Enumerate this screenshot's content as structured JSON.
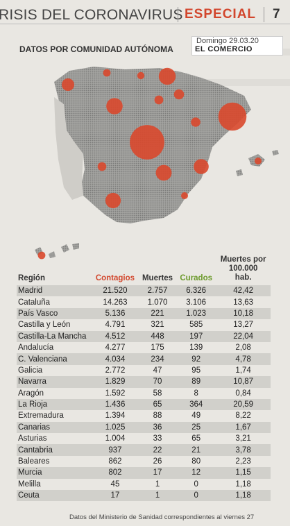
{
  "header": {
    "title": "RISIS DEL CORONAVIRUS",
    "section": "ESPECIAL",
    "page_number": "7"
  },
  "infographic": {
    "subtitle": "DATOS POR COMUNIDAD AUTÓNOMA",
    "date": "Domingo 29.03.20",
    "publication": "EL COMERCIO"
  },
  "map": {
    "land_color": "#8f8f8d",
    "bubble_color": "#d9482c",
    "bubbles": [
      {
        "region": "Galicia",
        "value": 2772
      },
      {
        "region": "Asturias",
        "value": 1004
      },
      {
        "region": "Cantabria",
        "value": 937
      },
      {
        "region": "País Vasco",
        "value": 5136
      },
      {
        "region": "Navarra",
        "value": 1829
      },
      {
        "region": "La Rioja",
        "value": 1436
      },
      {
        "region": "Aragón",
        "value": 1592
      },
      {
        "region": "Cataluña",
        "value": 14263
      },
      {
        "region": "Castilla y León",
        "value": 4791
      },
      {
        "region": "Madrid",
        "value": 21520
      },
      {
        "region": "Castilla-La Mancha",
        "value": 4512
      },
      {
        "region": "C. Valenciana",
        "value": 4034
      },
      {
        "region": "Baleares",
        "value": 862
      },
      {
        "region": "Extremadura",
        "value": 1394
      },
      {
        "region": "Murcia",
        "value": 802
      },
      {
        "region": "Andalucía",
        "value": 4277
      },
      {
        "region": "Canarias",
        "value": 1025
      }
    ]
  },
  "table": {
    "headers": {
      "region": "Región",
      "contagios": "Contagios",
      "muertes": "Muertes",
      "curados": "Curados",
      "rate_line1": "Muertes por",
      "rate_line2": "100.000",
      "rate_line3": "hab."
    },
    "rows": [
      {
        "region": "Madrid",
        "contagios": "21.520",
        "muertes": "2.757",
        "curados": "6.326",
        "rate": "42,42"
      },
      {
        "region": "Cataluña",
        "contagios": "14.263",
        "muertes": "1.070",
        "curados": "3.106",
        "rate": "13,63"
      },
      {
        "region": "País Vasco",
        "contagios": "5.136",
        "muertes": "221",
        "curados": "1.023",
        "rate": "10,18"
      },
      {
        "region": "Castilla y León",
        "contagios": "4.791",
        "muertes": "321",
        "curados": "585",
        "rate": "13,27"
      },
      {
        "region": "Castilla-La Mancha",
        "contagios": "4.512",
        "muertes": "448",
        "curados": "197",
        "rate": "22,04"
      },
      {
        "region": "Andalucía",
        "contagios": "4.277",
        "muertes": "175",
        "curados": "139",
        "rate": "2,08"
      },
      {
        "region": "C. Valenciana",
        "contagios": "4.034",
        "muertes": "234",
        "curados": "92",
        "rate": "4,78"
      },
      {
        "region": "Galicia",
        "contagios": "2.772",
        "muertes": "47",
        "curados": "95",
        "rate": "1,74"
      },
      {
        "region": "Navarra",
        "contagios": "1.829",
        "muertes": "70",
        "curados": "89",
        "rate": "10,87"
      },
      {
        "region": "Aragón",
        "contagios": "1.592",
        "muertes": "58",
        "curados": "8",
        "rate": "0,84"
      },
      {
        "region": "La Rioja",
        "contagios": "1.436",
        "muertes": "65",
        "curados": "364",
        "rate": "20,59"
      },
      {
        "region": "Extremadura",
        "contagios": "1.394",
        "muertes": "88",
        "curados": "49",
        "rate": "8,22"
      },
      {
        "region": "Canarias",
        "contagios": "1.025",
        "muertes": "36",
        "curados": "25",
        "rate": "1,67"
      },
      {
        "region": "Asturias",
        "contagios": "1.004",
        "muertes": "33",
        "curados": "65",
        "rate": "3,21"
      },
      {
        "region": "Cantabria",
        "contagios": "937",
        "muertes": "22",
        "curados": "21",
        "rate": "3,78"
      },
      {
        "region": "Baleares",
        "contagios": "862",
        "muertes": "26",
        "curados": "80",
        "rate": "2,23"
      },
      {
        "region": "Murcia",
        "contagios": "802",
        "muertes": "17",
        "curados": "12",
        "rate": "1,15"
      },
      {
        "region": "Melilla",
        "contagios": "45",
        "muertes": "1",
        "curados": "0",
        "rate": "1,18"
      },
      {
        "region": "Ceuta",
        "contagios": "17",
        "muertes": "1",
        "curados": "0",
        "rate": "1,18"
      }
    ]
  },
  "footnote": "Datos del Ministerio de Sanidad correspondientes al viernes 27"
}
